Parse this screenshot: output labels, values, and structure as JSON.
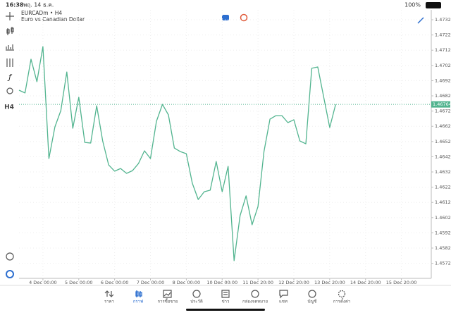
{
  "status_bar": {
    "time": "16:38",
    "date": "พฤ. 14 ธ.ค.",
    "battery": "100%"
  },
  "toolbar": {
    "timeframe": "H4"
  },
  "chart_data": {
    "type": "line",
    "title": "EURCADm • H4",
    "subtitle": "Euro vs Canadian Dollar",
    "series": [
      {
        "name": "EURCADm",
        "color": "#52b48f",
        "values": [
          1.46857,
          1.46839,
          1.47061,
          1.46913,
          1.47144,
          1.46408,
          1.46616,
          1.46723,
          1.46977,
          1.46607,
          1.46811,
          1.46514,
          1.4651,
          1.46755,
          1.46524,
          1.46366,
          1.46325,
          1.46343,
          1.46311,
          1.46329,
          1.46376,
          1.46459,
          1.46408,
          1.46653,
          1.46764,
          1.46695,
          1.46477,
          1.46454,
          1.4644,
          1.46246,
          1.46139,
          1.4619,
          1.462,
          1.46389,
          1.4619,
          1.46357,
          1.45737,
          1.46033,
          1.46163,
          1.45973,
          1.46093,
          1.46454,
          1.46667,
          1.4669,
          1.4669,
          1.46644,
          1.46663,
          1.46524,
          1.46505,
          1.47001,
          1.4701,
          1.46811,
          1.46612,
          1.46764
        ]
      }
    ],
    "last_price": 1.46764,
    "xlim": [
      0,
      69
    ],
    "xticks": [
      {
        "value": 4,
        "label": "4 Dec 00:00"
      },
      {
        "value": 10,
        "label": "5 Dec 00:00"
      },
      {
        "value": 16,
        "label": "6 Dec 00:00"
      },
      {
        "value": 22,
        "label": "7 Dec 00:00"
      },
      {
        "value": 28,
        "label": "8 Dec 00:00"
      },
      {
        "value": 34,
        "label": "10 Dec 00:00"
      },
      {
        "value": 40,
        "label": "11 Dec 20:00"
      },
      {
        "value": 46,
        "label": "12 Dec 20:00"
      },
      {
        "value": 52,
        "label": "13 Dec 20:00"
      },
      {
        "value": 58,
        "label": "14 Dec 20:00"
      },
      {
        "value": 64,
        "label": "15 Dec 20:00"
      }
    ],
    "ylim": [
      1.45621,
      1.47385
    ],
    "yticks": [
      {
        "value": 1.4732,
        "label": "1.47320"
      },
      {
        "value": 1.4722,
        "label": "1.47220"
      },
      {
        "value": 1.4712,
        "label": "1.47120"
      },
      {
        "value": 1.4702,
        "label": "1.47020"
      },
      {
        "value": 1.4692,
        "label": "1.46920"
      },
      {
        "value": 1.4682,
        "label": "1.46820"
      },
      {
        "value": 1.4672,
        "label": "1.46720"
      },
      {
        "value": 1.4662,
        "label": "1.46620"
      },
      {
        "value": 1.4652,
        "label": "1.46520"
      },
      {
        "value": 1.4642,
        "label": "1.46420"
      },
      {
        "value": 1.4632,
        "label": "1.46320"
      },
      {
        "value": 1.4622,
        "label": "1.46220"
      },
      {
        "value": 1.4612,
        "label": "1.46120"
      },
      {
        "value": 1.4602,
        "label": "1.46020"
      },
      {
        "value": 1.4592,
        "label": "1.45920"
      },
      {
        "value": 1.4582,
        "label": "1.45820"
      },
      {
        "value": 1.4572,
        "label": "1.45720"
      }
    ],
    "grid": true
  },
  "tabs": [
    "ราคา",
    "กราฟ",
    "การซื้อขาย",
    "ประวัติ",
    "ข่าว",
    "กล่องจดหมาย",
    "แชท",
    "บัญชี",
    "การตั้งค่า"
  ],
  "active_tab": 1
}
